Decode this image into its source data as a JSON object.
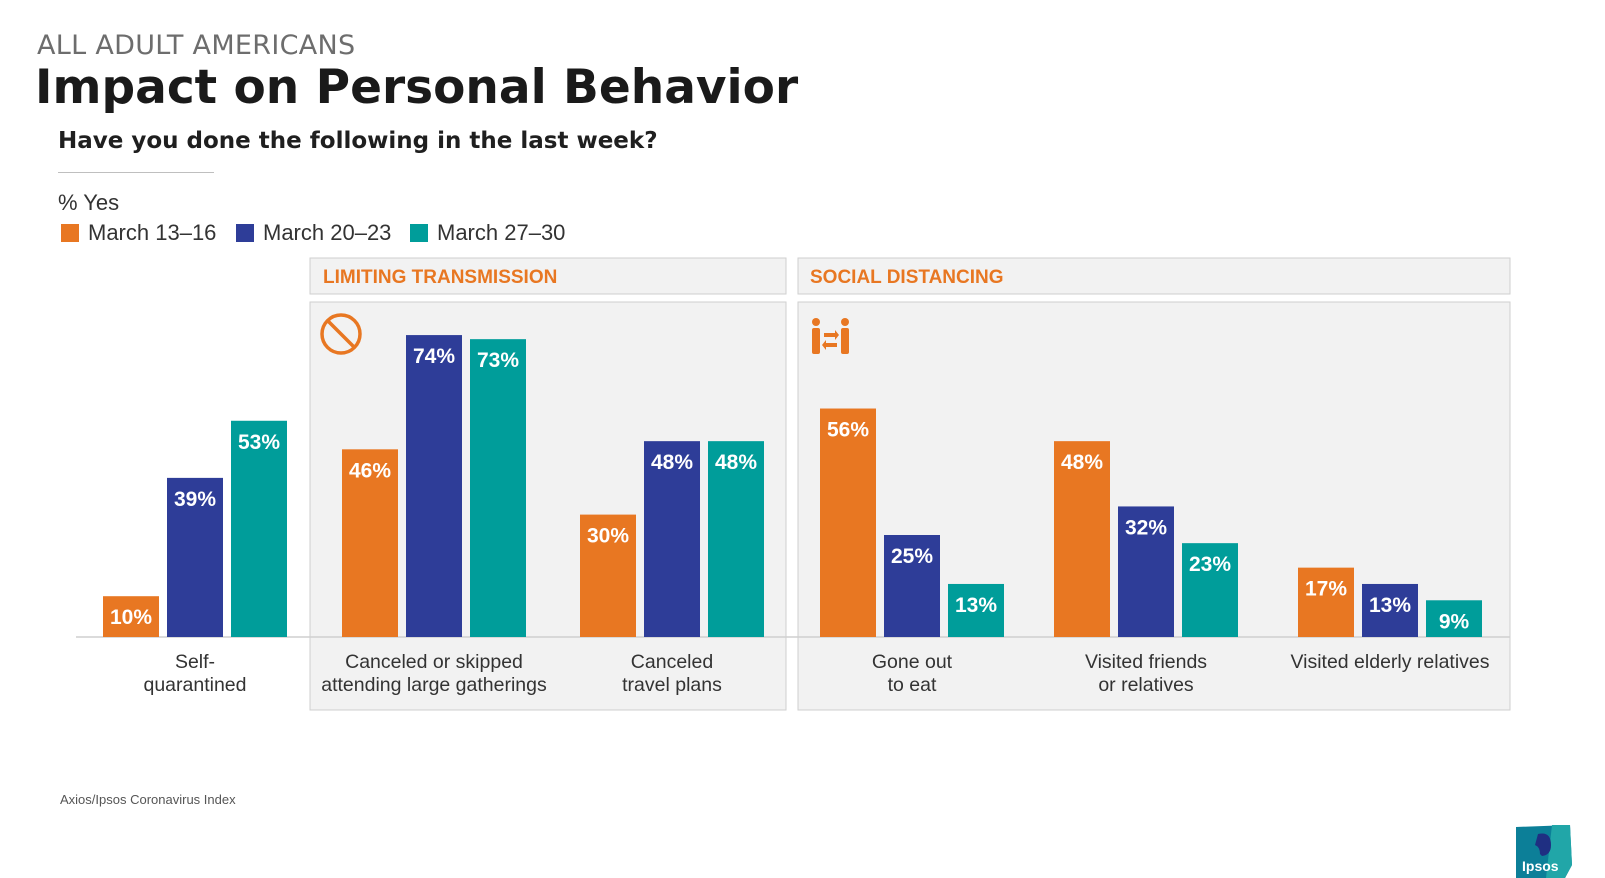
{
  "header": {
    "eyebrow": "ALL ADULT AMERICANS",
    "title": "Impact on Personal Behavior",
    "question": "Have you done the following in the last week?"
  },
  "source": "Axios/Ipsos Coronavirus Index",
  "logo": {
    "text": "Ipsos",
    "icon": "ipsos-logo-icon"
  },
  "colors": {
    "march_13_16": "#E87722",
    "march_20_23": "#2E3D98",
    "march_27_30": "#009D9A",
    "panel_fill": "#F2F2F2",
    "panel_header_text": "#E87722"
  },
  "chart_data": {
    "type": "bar",
    "ylabel": "% Yes",
    "ylim": [
      0,
      80
    ],
    "legend_position": "top-left",
    "series": [
      {
        "name": "March 13–16",
        "values": [
          10,
          46,
          30,
          56,
          48,
          17
        ]
      },
      {
        "name": "March 20–23",
        "values": [
          39,
          74,
          48,
          25,
          32,
          13
        ]
      },
      {
        "name": "March 27–30",
        "values": [
          53,
          73,
          48,
          13,
          23,
          9
        ]
      }
    ],
    "categories": [
      [
        "Self-",
        "quarantined"
      ],
      [
        "Canceled or skipped",
        "attending large gatherings"
      ],
      [
        "Canceled",
        "travel plans"
      ],
      [
        "Gone out",
        "to eat"
      ],
      [
        "Visited friends",
        "or relatives"
      ],
      [
        "Visited elderly relatives"
      ]
    ],
    "groups": [
      {
        "title": "LIMITING TRANSMISSION",
        "categories": [
          1,
          2
        ],
        "icon": "no-entry-icon"
      },
      {
        "title": "SOCIAL DISTANCING",
        "categories": [
          3,
          4,
          5
        ],
        "icon": "social-distancing-icon"
      }
    ]
  }
}
